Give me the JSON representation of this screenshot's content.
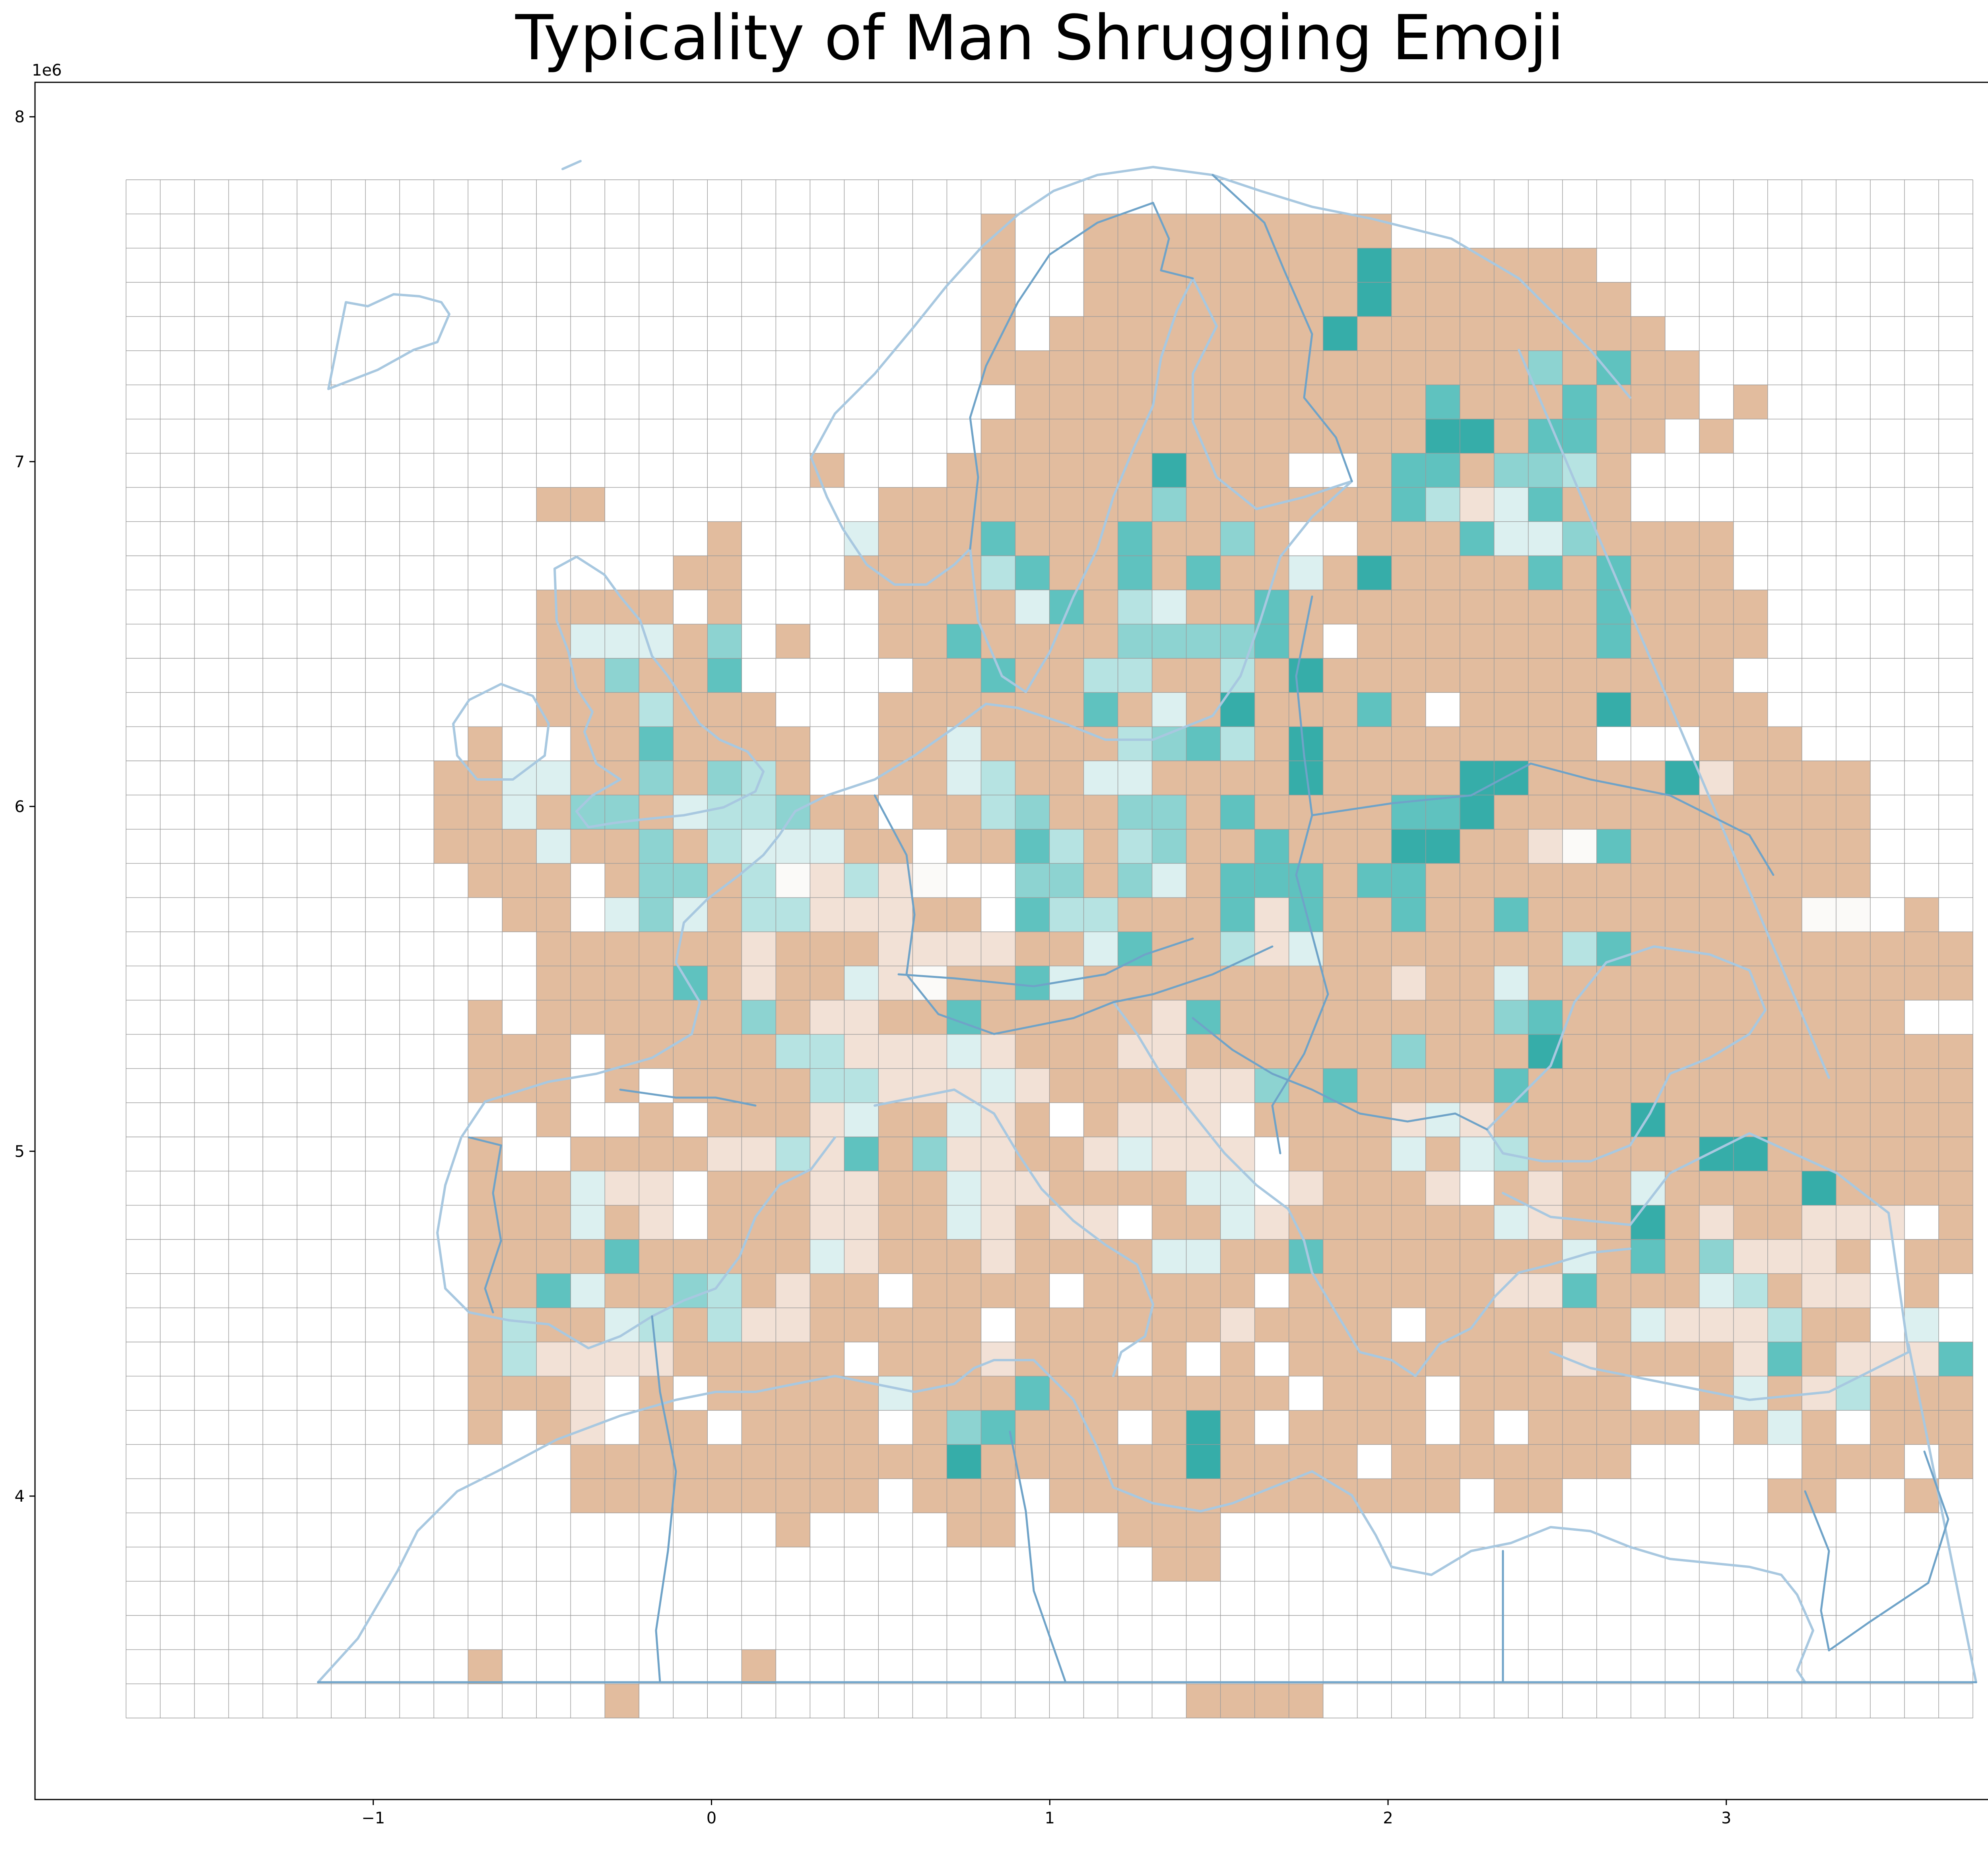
{
  "title": "Typicality of Man Shrugging Emoji",
  "axes": {
    "x_offset_label": "1e6",
    "y_offset_label": "1e6",
    "x_ticks": [
      {
        "value": -1000000,
        "label": "−1"
      },
      {
        "value": 0,
        "label": "0"
      },
      {
        "value": 1000000,
        "label": "1"
      },
      {
        "value": 2000000,
        "label": "2"
      },
      {
        "value": 3000000,
        "label": "3"
      }
    ],
    "y_ticks": [
      {
        "value": 4000000,
        "label": "4"
      },
      {
        "value": 5000000,
        "label": "5"
      },
      {
        "value": 6000000,
        "label": "6"
      },
      {
        "value": 7000000,
        "label": "7"
      },
      {
        "value": 8000000,
        "label": "8"
      }
    ],
    "xlim": [
      -2000000,
      3950000
    ],
    "ylim": [
      3120000,
      8100000
    ]
  },
  "colors": {
    "grid_line": "#9a9a9a",
    "coast": "#a8c8e0",
    "border": "#6fa3c8",
    "class_colors": {
      "A": "#e2bc9e",
      "L1": "#f2e1d6",
      "L2": "#f8f0ea",
      "N": "#fbfaf8",
      "T1": "#dcf0f0",
      "T2": "#b6e3e2",
      "T3": "#8dd3d1",
      "T4": "#5fc2bf",
      "T5": "#36ada9"
    }
  },
  "grid": {
    "cell_size_m": 100000,
    "x_start": -1730000,
    "y_start": 3320000,
    "cols": 54,
    "rows": 45
  },
  "map_data": {
    "description_classes": "A=atypical (tan), L=light tan, N=near neutral, T=typical (teal, 1-5 increasing)",
    "rows": [
      "                                                      ",
      "    A                                                 ",
      "                          A              AAA          ",
      "                         AAAA           AAA           ",
      "                        AAAAAAAAAA    AAAAAAAAA  AAA   ",
      "                          AAAAAAAAAA  AAAAAAAAAAAAAA  ",
      "                       AAAAAAAAAAAAA AAAAAAAAAAAAAA   ",
      "                         AAAAAAAAAAAA AAAAAAAAAAAAAAA ",
      "                         AAAAAAAAAAAAAAAAAAAAAAAAAA  ",
      "                          AAAAAAAAAAAAAAAAAAAAAAAAA   ",
      "                        AAAAAAAAAAAAAAAAAAAAAAAAAAAA  ",
      "                                                      "
    ]
  }
}
